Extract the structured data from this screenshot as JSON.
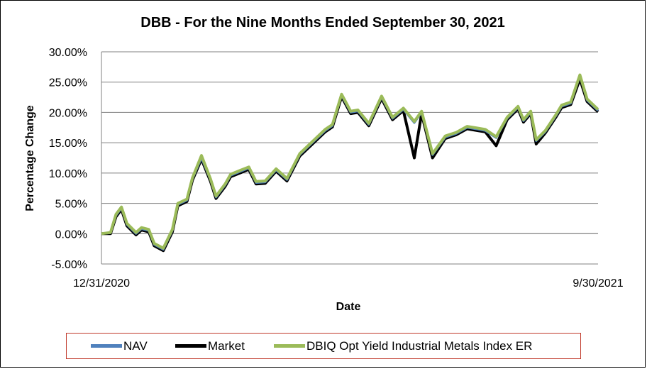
{
  "chart_data": {
    "type": "line",
    "title": "DBB - For the Nine Months Ended September 30, 2021",
    "xlabel": "Date",
    "ylabel": "Percentage Change",
    "x_tick_labels": [
      "12/31/2020",
      "9/30/2021"
    ],
    "x_range": [
      "12/31/2020",
      "9/30/2021"
    ],
    "ylim": [
      -5,
      30
    ],
    "y_tick_values": [
      -5,
      0,
      5,
      10,
      15,
      20,
      25,
      30
    ],
    "y_tick_labels": [
      "-5.00%",
      "0.00%",
      "5.00%",
      "10.00%",
      "15.00%",
      "20.00%",
      "25.00%",
      "30.00%"
    ],
    "grid": "horizontal",
    "legend_position": "bottom",
    "x": [
      "12/31/2020",
      "1/5/2021",
      "1/8/2021",
      "1/11/2021",
      "1/14/2021",
      "1/19/2021",
      "1/22/2021",
      "1/26/2021",
      "1/29/2021",
      "2/3/2021",
      "2/8/2021",
      "2/11/2021",
      "2/16/2021",
      "2/19/2021",
      "2/24/2021",
      "3/1/2021",
      "3/4/2021",
      "3/9/2021",
      "3/12/2021",
      "3/17/2021",
      "3/22/2021",
      "3/26/2021",
      "3/31/2021",
      "4/6/2021",
      "4/12/2021",
      "4/19/2021",
      "4/26/2021",
      "5/3/2021",
      "5/7/2021",
      "5/12/2021",
      "5/17/2021",
      "5/21/2021",
      "5/27/2021",
      "6/3/2021",
      "6/9/2021",
      "6/15/2021",
      "6/21/2021",
      "6/25/2021",
      "7/1/2021",
      "7/8/2021",
      "7/14/2021",
      "7/20/2021",
      "7/26/2021",
      "7/30/2021",
      "8/5/2021",
      "8/11/2021",
      "8/17/2021",
      "8/20/2021",
      "8/24/2021",
      "8/27/2021",
      "9/1/2021",
      "9/7/2021",
      "9/10/2021",
      "9/15/2021",
      "9/20/2021",
      "9/24/2021",
      "9/30/2021"
    ],
    "series": [
      {
        "name": "NAV",
        "color": "#4f81bd",
        "values": [
          0.0,
          0.1,
          3.0,
          4.2,
          1.5,
          0.0,
          0.8,
          0.5,
          -1.8,
          -2.6,
          0.5,
          4.8,
          5.5,
          9.0,
          12.5,
          8.8,
          6.0,
          8.0,
          9.6,
          10.2,
          10.8,
          8.4,
          8.5,
          10.5,
          8.9,
          13.0,
          15.0,
          17.0,
          17.8,
          22.8,
          20.0,
          20.2,
          18.0,
          22.5,
          19.0,
          20.5,
          18.3,
          20.0,
          13.0,
          15.9,
          16.5,
          17.5,
          17.2,
          17.0,
          15.8,
          19.0,
          20.8,
          18.6,
          20.0,
          15.3,
          16.8,
          19.5,
          21.0,
          21.5,
          26.0,
          22.0,
          20.3
        ]
      },
      {
        "name": "Market",
        "color": "#000000",
        "values": [
          0.0,
          0.0,
          2.8,
          4.0,
          1.3,
          -0.2,
          0.6,
          0.3,
          -2.0,
          -2.8,
          0.3,
          4.6,
          5.3,
          8.8,
          12.3,
          8.6,
          5.8,
          7.8,
          9.4,
          10.0,
          10.6,
          8.2,
          8.3,
          10.3,
          8.7,
          12.8,
          14.8,
          16.8,
          17.6,
          22.6,
          19.8,
          20.0,
          17.8,
          22.3,
          18.8,
          20.3,
          12.5,
          19.8,
          12.5,
          15.7,
          16.3,
          17.3,
          17.0,
          16.8,
          14.5,
          18.8,
          20.6,
          18.4,
          19.8,
          14.8,
          16.6,
          19.3,
          20.8,
          21.3,
          25.5,
          21.8,
          20.1
        ]
      },
      {
        "name": "DBIQ Opt Yield Industrial Metals Index ER",
        "color": "#9bbb59",
        "values": [
          0.0,
          0.2,
          3.2,
          4.4,
          1.7,
          0.2,
          1.0,
          0.7,
          -1.6,
          -2.4,
          0.7,
          5.0,
          5.7,
          9.2,
          12.9,
          9.0,
          6.2,
          8.2,
          9.8,
          10.4,
          11.0,
          8.6,
          8.7,
          10.7,
          9.1,
          13.2,
          15.2,
          17.2,
          18.0,
          23.0,
          20.2,
          20.4,
          18.2,
          22.7,
          19.2,
          20.7,
          18.5,
          20.2,
          13.2,
          16.1,
          16.7,
          17.7,
          17.4,
          17.2,
          16.0,
          19.2,
          21.0,
          18.8,
          20.2,
          15.5,
          17.0,
          19.7,
          21.2,
          21.7,
          26.2,
          22.2,
          20.5
        ]
      }
    ]
  },
  "legend": {
    "items": [
      {
        "label": "NAV",
        "color": "#4f81bd"
      },
      {
        "label": "Market",
        "color": "#000000"
      },
      {
        "label": "DBIQ Opt Yield Industrial Metals Index ER",
        "color": "#9bbb59"
      }
    ]
  }
}
